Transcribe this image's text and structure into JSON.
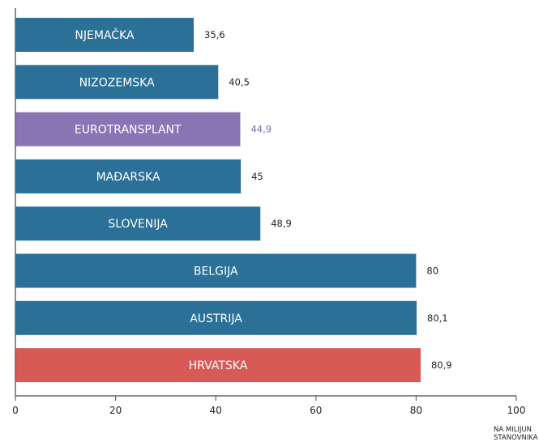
{
  "chart_data": {
    "type": "bar",
    "orientation": "horizontal",
    "categories": [
      "NJEMAČKA",
      "NIZOZEMSKA",
      "EUROTRANSPLANT",
      "MAĐARSKA",
      "SLOVENIJA",
      "BELGIJA",
      "AUSTRIJA",
      "HRVATSKA"
    ],
    "values": [
      35.6,
      40.5,
      44.9,
      45,
      48.9,
      80,
      80.1,
      80.9
    ],
    "value_labels": [
      "35,6",
      "40,5",
      "44,9",
      "45",
      "48,9",
      "80",
      "80,1",
      "80,9"
    ],
    "colors": [
      "#2a7097",
      "#2a7097",
      "#8b74b3",
      "#2a7097",
      "#2a7097",
      "#2a7097",
      "#2a7097",
      "#d85a56"
    ],
    "value_label_colors": [
      "#222222",
      "#222222",
      "#7b6aa8",
      "#222222",
      "#222222",
      "#222222",
      "#222222",
      "#222222"
    ],
    "xlim": [
      0,
      100
    ],
    "xticks": [
      0,
      20,
      40,
      60,
      80,
      100
    ],
    "xtick_labels": [
      "0",
      "20",
      "40",
      "60",
      "80",
      "100"
    ],
    "unit_label": "NA MILIJUN\nSTANOVNIKA",
    "grid": false,
    "legend": "none"
  }
}
